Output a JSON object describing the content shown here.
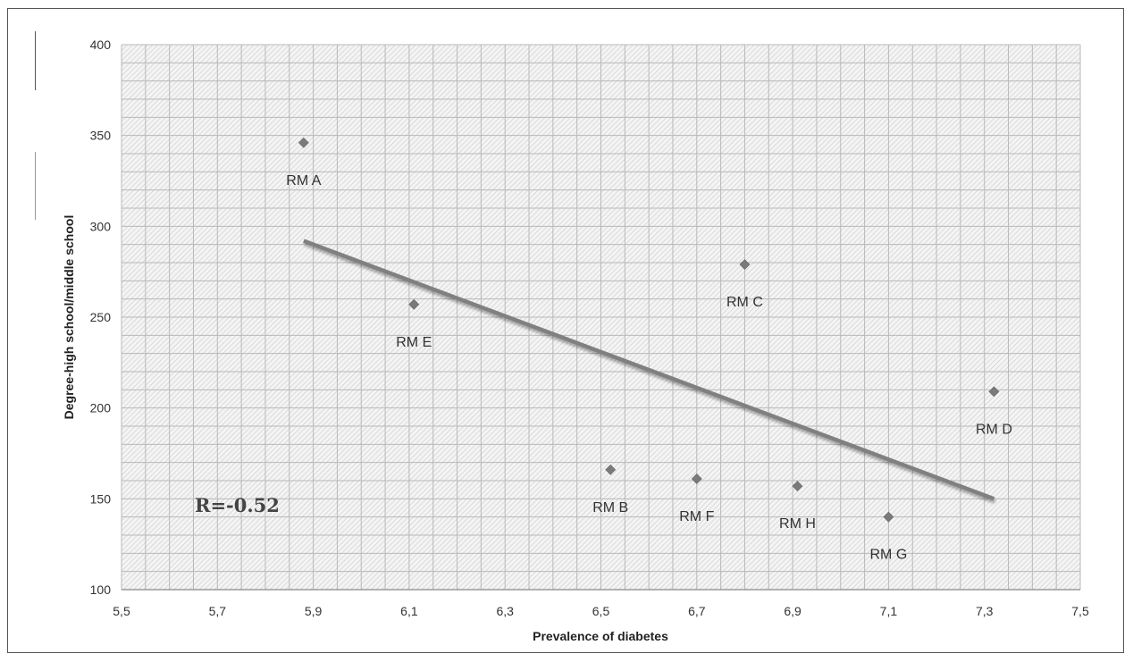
{
  "chart_data": {
    "type": "scatter",
    "xlabel": "Prevalence of diabetes",
    "ylabel": "Degree-high school/middle school",
    "xlim": [
      5.5,
      7.5
    ],
    "ylim": [
      100,
      400
    ],
    "x_ticks": [
      "5,5",
      "5,7",
      "5,9",
      "6,1",
      "6,3",
      "6,5",
      "6,7",
      "6,9",
      "7,1",
      "7,3",
      "7,5"
    ],
    "y_ticks": [
      "100",
      "150",
      "200",
      "250",
      "300",
      "350",
      "400"
    ],
    "grid": true,
    "points": [
      {
        "label": "RM A",
        "x": 5.88,
        "y": 346
      },
      {
        "label": "RM E",
        "x": 6.11,
        "y": 257
      },
      {
        "label": "RM C",
        "x": 6.8,
        "y": 279
      },
      {
        "label": "RM D",
        "x": 7.32,
        "y": 209
      },
      {
        "label": "RM B",
        "x": 6.52,
        "y": 166
      },
      {
        "label": "RM F",
        "x": 6.7,
        "y": 161
      },
      {
        "label": "RM H",
        "x": 6.91,
        "y": 157
      },
      {
        "label": "RM G",
        "x": 7.1,
        "y": 140
      }
    ],
    "trendline": {
      "x": [
        5.88,
        7.32
      ],
      "y": [
        292,
        150
      ]
    },
    "annotation": "R=-0.52",
    "colors": {
      "marker": "#7a7a7a",
      "trendline": "#808080",
      "grid": "#b9b9b9"
    }
  }
}
